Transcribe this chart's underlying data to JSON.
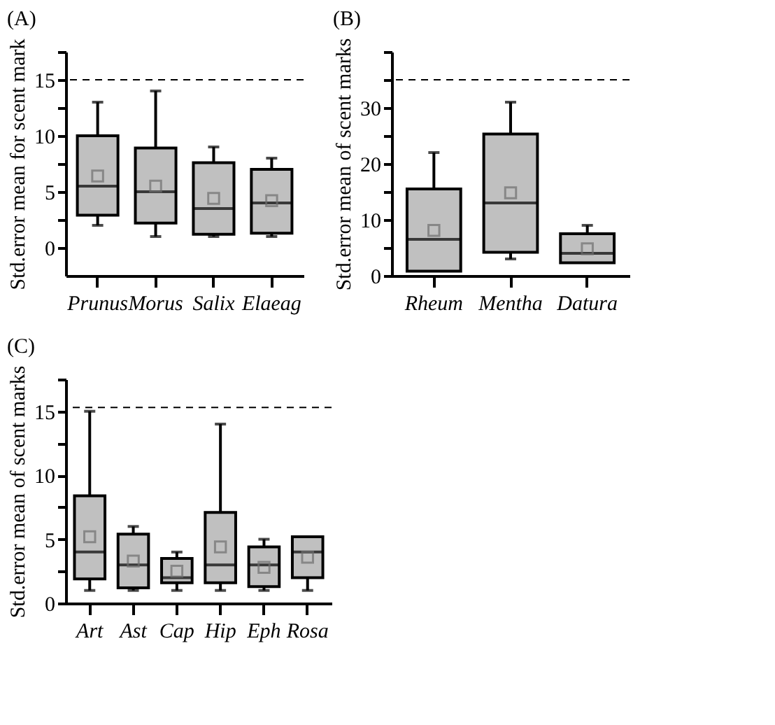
{
  "chart_data": [
    {
      "type": "box",
      "title": "(A)",
      "ylabel": "Std.error mean for scent mark",
      "categories": [
        "Prunus",
        "Morus",
        "Salix",
        "Elaeag"
      ],
      "ylim": [
        -2.5,
        17.5
      ],
      "yticks": [
        0,
        {
          "value": 2.5,
          "label": null
        },
        5,
        {
          "value": 7.5,
          "label": null
        },
        10,
        {
          "value": 12.5,
          "label": null
        },
        15,
        {
          "value": 17.5,
          "label": null
        }
      ],
      "grid": false,
      "series": [
        {
          "color": "#c0c0c0",
          "boxes": [
            {
              "low": 2,
              "q1": 2.9,
              "median": 5.5,
              "q3": 10,
              "high": 13,
              "mean": 6.4
            },
            {
              "low": 1,
              "q1": 2.2,
              "median": 5,
              "q3": 8.9,
              "high": 14,
              "mean": 5.5
            },
            {
              "low": 1,
              "q1": 1.2,
              "median": 3.5,
              "q3": 7.6,
              "high": 9,
              "mean": 4.4
            },
            {
              "low": 1,
              "q1": 1.3,
              "median": 4,
              "q3": 7,
              "high": 8,
              "mean": 4.2
            }
          ]
        }
      ],
      "ref_lines": [
        {
          "axis": "y",
          "value": 15,
          "line_style": "dashed"
        }
      ]
    },
    {
      "type": "box",
      "title": "(B)",
      "ylabel": "Std.error mean of scent marks",
      "categories": [
        "Rheum",
        "Mentha",
        "Datura"
      ],
      "ylim": [
        0,
        40
      ],
      "yticks": [
        0,
        {
          "value": 5,
          "label": null
        },
        10,
        {
          "value": 15,
          "label": null
        },
        20,
        {
          "value": 25,
          "label": null
        },
        30,
        {
          "value": 35,
          "label": null
        },
        {
          "value": 40,
          "label": null
        }
      ],
      "grid": false,
      "series": [
        {
          "color": "#c0c0c0",
          "boxes": [
            {
              "low": 0.8,
              "q1": 0.8,
              "median": 6.5,
              "q3": 15.5,
              "high": 22,
              "mean": 8.1
            },
            {
              "low": 3,
              "q1": 4.2,
              "median": 13,
              "q3": 25.3,
              "high": 31,
              "mean": 14.8
            },
            {
              "low": 2.3,
              "q1": 2.3,
              "median": 4,
              "q3": 7.5,
              "high": 9,
              "mean": 4.8
            }
          ]
        }
      ],
      "ref_lines": [
        {
          "axis": "y",
          "value": 35,
          "line_style": "dashed"
        }
      ]
    },
    {
      "type": "box",
      "title": "(C)",
      "ylabel": "Std.error mean of scent marks",
      "categories": [
        "Art",
        "Ast",
        "Cap",
        "Hip",
        "Eph",
        "Rosa"
      ],
      "ylim": [
        0,
        17.5
      ],
      "yticks": [
        0,
        {
          "value": 2.5,
          "label": null
        },
        5,
        {
          "value": 7.5,
          "label": null
        },
        10,
        {
          "value": 12.5,
          "label": null
        },
        15,
        {
          "value": 17.5,
          "label": null
        }
      ],
      "grid": false,
      "series": [
        {
          "color": "#c0c0c0",
          "boxes": [
            {
              "low": 1,
              "q1": 1.9,
              "median": 4,
              "q3": 8.4,
              "high": 15,
              "mean": 5.2
            },
            {
              "low": 1,
              "q1": 1.2,
              "median": 3,
              "q3": 5.4,
              "high": 6,
              "mean": 3.3
            },
            {
              "low": 1,
              "q1": 1.6,
              "median": 2,
              "q3": 3.5,
              "high": 4,
              "mean": 2.5
            },
            {
              "low": 1,
              "q1": 1.6,
              "median": 3,
              "q3": 7.1,
              "high": 14,
              "mean": 4.4
            },
            {
              "low": 1,
              "q1": 1.3,
              "median": 3,
              "q3": 4.4,
              "high": 5,
              "mean": 2.8
            },
            {
              "low": 1,
              "q1": 2,
              "median": 4,
              "q3": 5.2,
              "high": 5.2,
              "mean": 3.6
            }
          ]
        }
      ],
      "ref_lines": [
        {
          "axis": "y",
          "value": 15.3,
          "line_style": "dashed"
        }
      ]
    }
  ]
}
